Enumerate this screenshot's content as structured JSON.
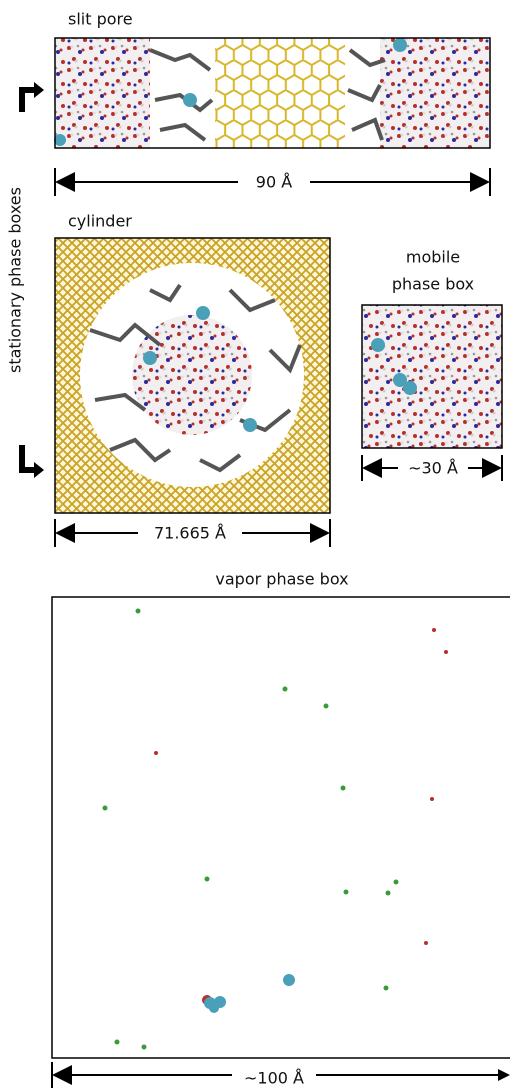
{
  "side_label": "stationary phase boxes",
  "slit_pore": {
    "label": "slit pore",
    "dimension": "90 Å"
  },
  "cylinder": {
    "label": "cylinder",
    "dimension": "71.665 Å"
  },
  "mobile": {
    "label": [
      "mobile",
      "phase box"
    ],
    "dimension": "~30 Å"
  },
  "vapor": {
    "label": "vapor phase box",
    "dimension": "~100 Å"
  }
}
